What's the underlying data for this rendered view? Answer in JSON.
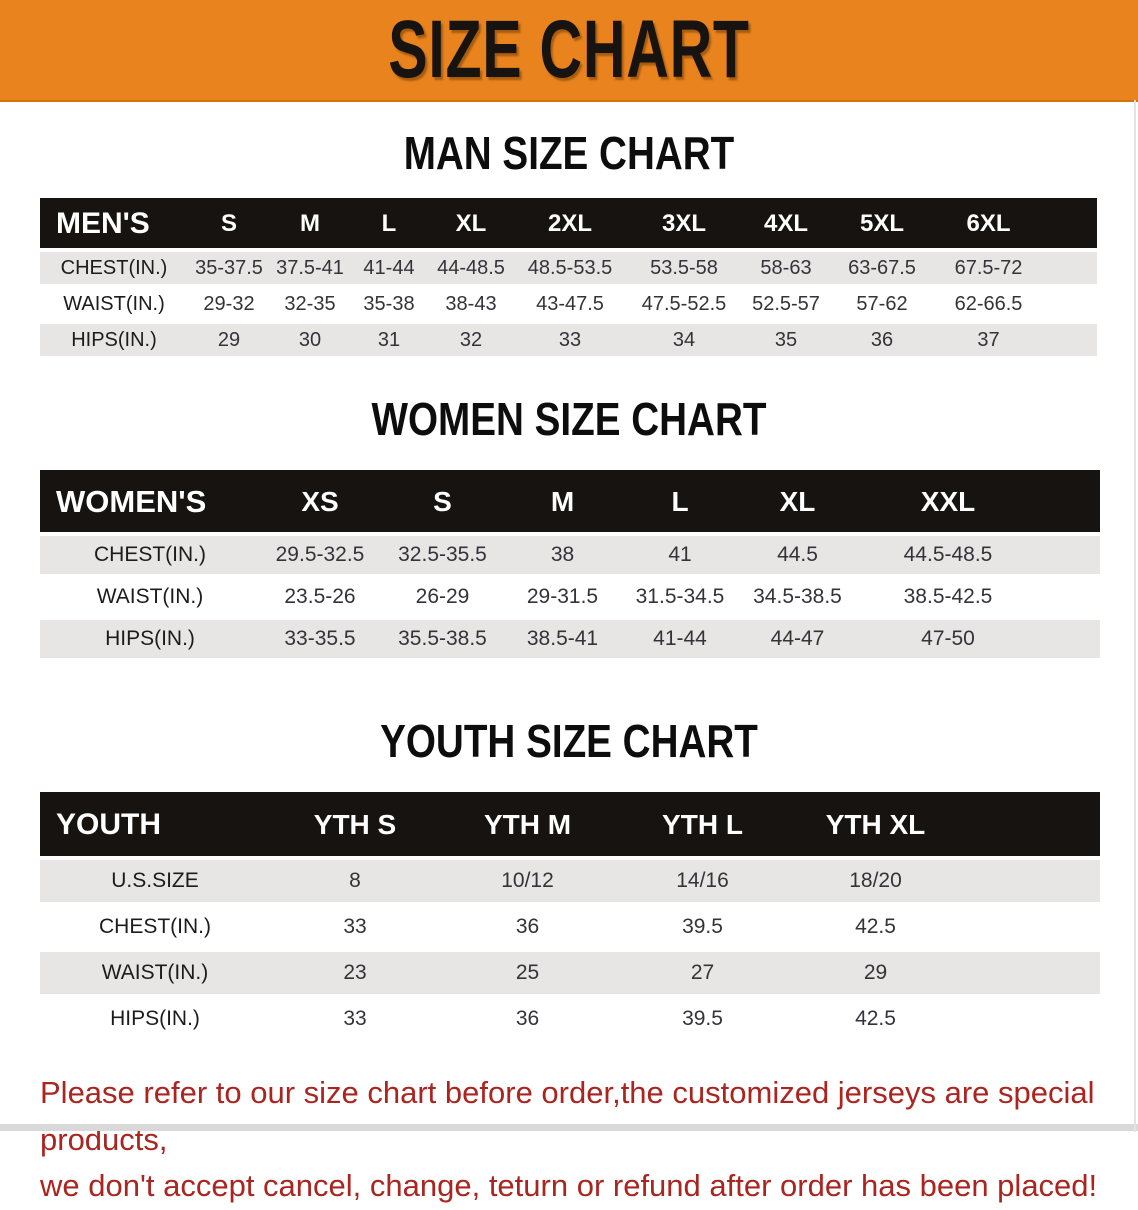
{
  "banner": {
    "title": "SIZE CHART"
  },
  "sections": [
    {
      "heading": "MAN SIZE CHART",
      "table": {
        "header": [
          "MEN'S",
          "S",
          "M",
          "L",
          "XL",
          "2XL",
          "3XL",
          "4XL",
          "5XL",
          "6XL"
        ],
        "rows": [
          {
            "label": "CHEST(IN.)",
            "values": [
              "35-37.5",
              "37.5-41",
              "41-44",
              "44-48.5",
              "48.5-53.5",
              "53.5-58",
              "58-63",
              "63-67.5",
              "67.5-72"
            ]
          },
          {
            "label": "WAIST(IN.)",
            "values": [
              "29-32",
              "32-35",
              "35-38",
              "38-43",
              "43-47.5",
              "47.5-52.5",
              "52.5-57",
              "57-62",
              "62-66.5"
            ]
          },
          {
            "label": "HIPS(IN.)",
            "values": [
              "29",
              "30",
              "31",
              "32",
              "33",
              "34",
              "35",
              "36",
              "37"
            ]
          }
        ]
      }
    },
    {
      "heading": "WOMEN SIZE CHART",
      "table": {
        "header": [
          "WOMEN'S",
          "XS",
          "S",
          "M",
          "L",
          "XL",
          "XXL"
        ],
        "rows": [
          {
            "label": "CHEST(IN.)",
            "values": [
              "29.5-32.5",
              "32.5-35.5",
              "38",
              "41",
              "44.5",
              "44.5-48.5"
            ]
          },
          {
            "label": "WAIST(IN.)",
            "values": [
              "23.5-26",
              "26-29",
              "29-31.5",
              "31.5-34.5",
              "34.5-38.5",
              "38.5-42.5"
            ]
          },
          {
            "label": "HIPS(IN.)",
            "values": [
              "33-35.5",
              "35.5-38.5",
              "38.5-41",
              "41-44",
              "44-47",
              "47-50"
            ]
          }
        ]
      }
    },
    {
      "heading": "YOUTH SIZE CHART",
      "table": {
        "header": [
          "YOUTH",
          "YTH S",
          "YTH M",
          "YTH L",
          "YTH XL"
        ],
        "rows": [
          {
            "label": "U.S.SIZE",
            "values": [
              "8",
              "10/12",
              "14/16",
              "18/20"
            ]
          },
          {
            "label": "CHEST(IN.)",
            "values": [
              "33",
              "36",
              "39.5",
              "42.5"
            ]
          },
          {
            "label": "WAIST(IN.)",
            "values": [
              "23",
              "25",
              "27",
              "29"
            ]
          },
          {
            "label": "HIPS(IN.)",
            "values": [
              "33",
              "36",
              "39.5",
              "42.5"
            ]
          }
        ]
      }
    }
  ],
  "footer": {
    "line1": "Please refer to our size chart before order,the customized jerseys are special products,",
    "line2": "we don't accept cancel, change, teturn or refund after order has been placed!"
  },
  "colors": {
    "banner_bg": "#E8831D",
    "bar_bg": "#161310",
    "stripe": "#E7E6E4",
    "notice": "#AB2520"
  },
  "column_widths": {
    "men": [
      148,
      82,
      80,
      78,
      86,
      112,
      116,
      88,
      104,
      163
    ],
    "women": [
      220,
      120,
      125,
      115,
      120,
      115,
      245
    ],
    "youth": [
      230,
      170,
      175,
      175,
      310
    ]
  }
}
